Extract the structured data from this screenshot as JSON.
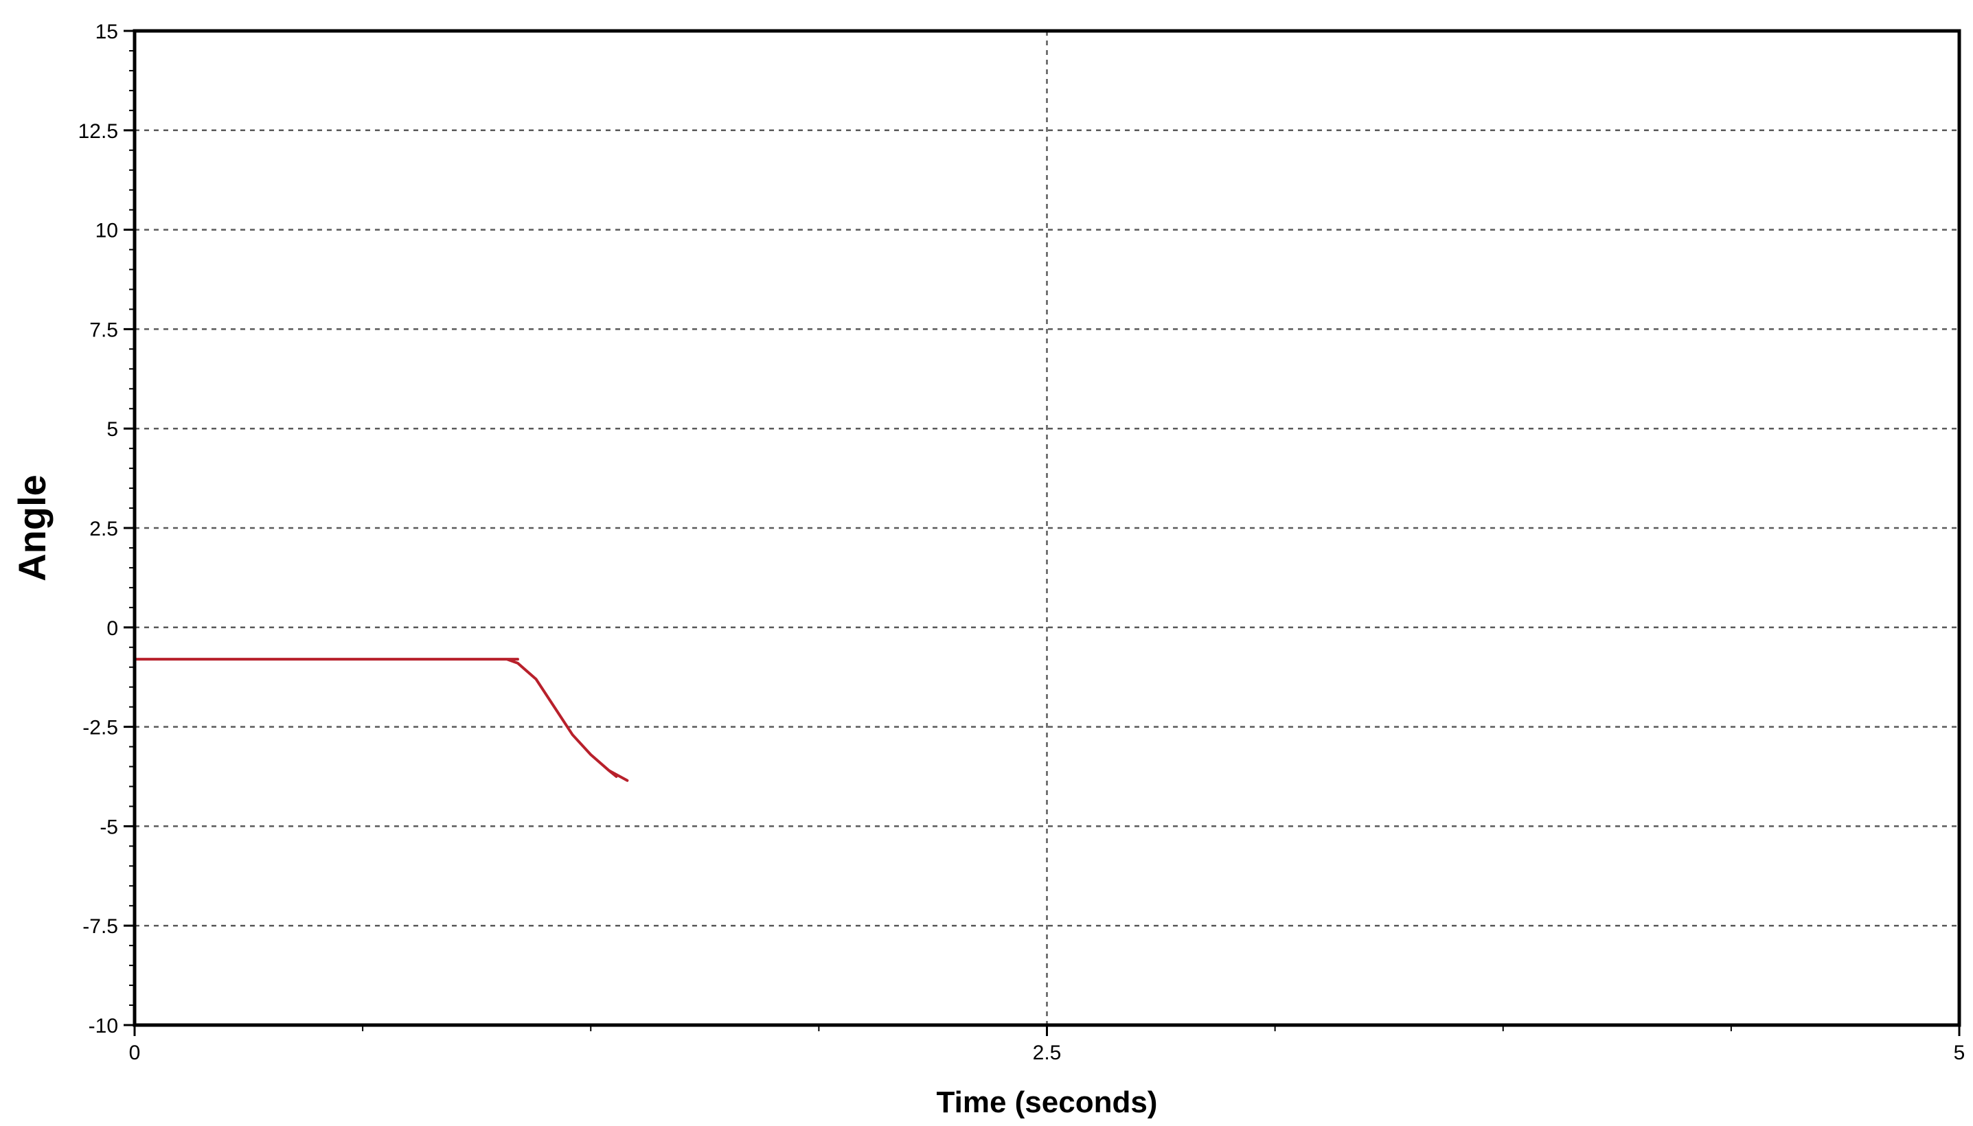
{
  "chart_data": {
    "type": "line",
    "title": "",
    "xlabel": "Time (seconds)",
    "ylabel": "Angle",
    "xlim": [
      0,
      5
    ],
    "ylim": [
      -10,
      15
    ],
    "x_ticks": [
      0,
      2.5,
      5
    ],
    "x_tick_labels": [
      "0",
      "2.5",
      "5"
    ],
    "x_minor_ticks": [
      0.625,
      1.25,
      1.875,
      3.125,
      3.75,
      4.375
    ],
    "y_ticks": [
      -10,
      -7.5,
      -5,
      -2.5,
      0,
      2.5,
      5,
      7.5,
      10,
      12.5,
      15
    ],
    "y_tick_labels": [
      "-10",
      "-7.5",
      "-5",
      "-2.5",
      "0",
      "2.5",
      "5",
      "7.5",
      "10",
      "12.5",
      "15"
    ],
    "grid": true,
    "legend": "none",
    "series": [
      {
        "color": "#b8202b",
        "points": [
          [
            0,
            -0.8
          ],
          [
            0.5,
            -0.8
          ],
          [
            1.0,
            -0.8
          ],
          [
            1.05,
            -0.8
          ],
          [
            1.0,
            -0.8
          ],
          [
            1.0,
            -0.8
          ],
          [
            1.02,
            -0.8
          ],
          [
            1.05,
            -0.9
          ],
          [
            1.1,
            -1.3
          ],
          [
            1.15,
            -2.0
          ],
          [
            1.2,
            -2.7
          ],
          [
            1.25,
            -3.2
          ],
          [
            1.3,
            -3.6
          ],
          [
            1.35,
            -3.85
          ],
          [
            1.3,
            -3.6
          ],
          [
            1.3,
            -3.6
          ],
          [
            1.3,
            -3.6
          ],
          [
            1.32,
            -3.75
          ],
          [
            1.3,
            -3.6
          ],
          [
            1.32,
            -3.75
          ],
          [
            1.3,
            -3.6
          ]
        ]
      }
    ]
  }
}
